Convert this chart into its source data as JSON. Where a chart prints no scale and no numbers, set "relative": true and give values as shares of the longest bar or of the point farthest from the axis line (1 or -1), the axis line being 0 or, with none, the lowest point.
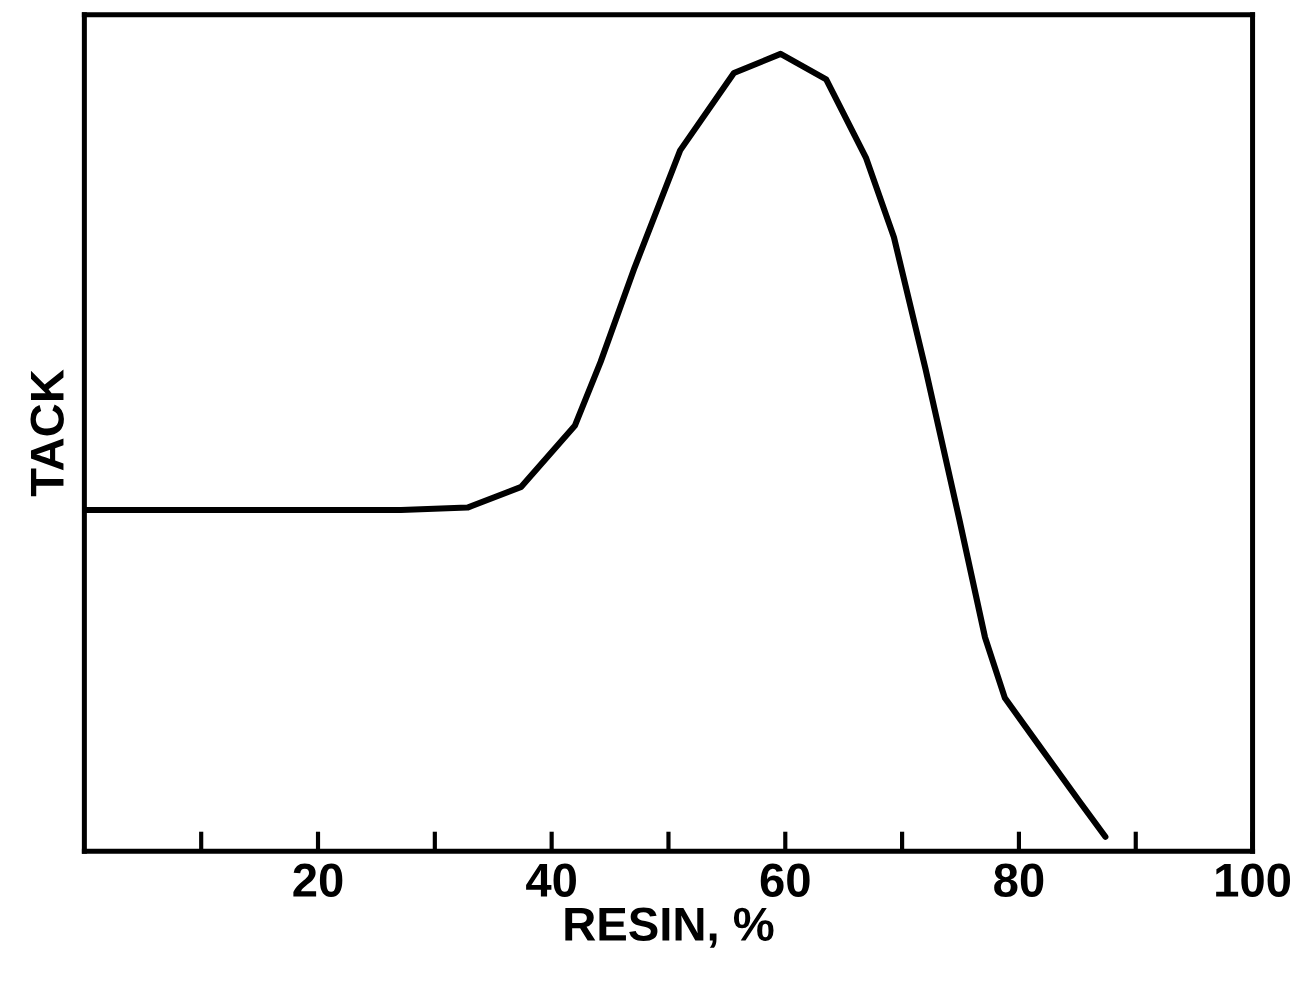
{
  "chart_data": {
    "type": "line",
    "xlabel": "RESIN, %",
    "ylabel": "TACK",
    "relative": true,
    "xlim": [
      0,
      100
    ],
    "xticks": [
      {
        "value": 10,
        "label": null
      },
      20,
      {
        "value": 30,
        "label": null
      },
      40,
      {
        "value": 50,
        "label": null
      },
      60,
      {
        "value": 70,
        "label": null
      },
      80,
      {
        "value": 90,
        "label": null
      },
      100
    ],
    "grid": false,
    "legend": false,
    "marker": "none",
    "line_style": "solid",
    "series": [
      {
        "color": "#000000",
        "x": [
          0,
          27.1,
          32.8,
          37.4,
          42,
          44.2,
          47.1,
          51,
          55.6,
          59.6,
          63.5,
          66.9,
          69.3,
          72,
          74.9,
          77.1,
          78.8,
          81.7,
          85.2,
          87.4
        ],
        "values": [
          0.428,
          0.428,
          0.431,
          0.457,
          0.534,
          0.614,
          0.732,
          0.879,
          0.976,
          1,
          0.968,
          0.87,
          0.77,
          0.605,
          0.416,
          0.268,
          0.192,
          0.133,
          0.062,
          0.018
        ]
      }
    ]
  }
}
